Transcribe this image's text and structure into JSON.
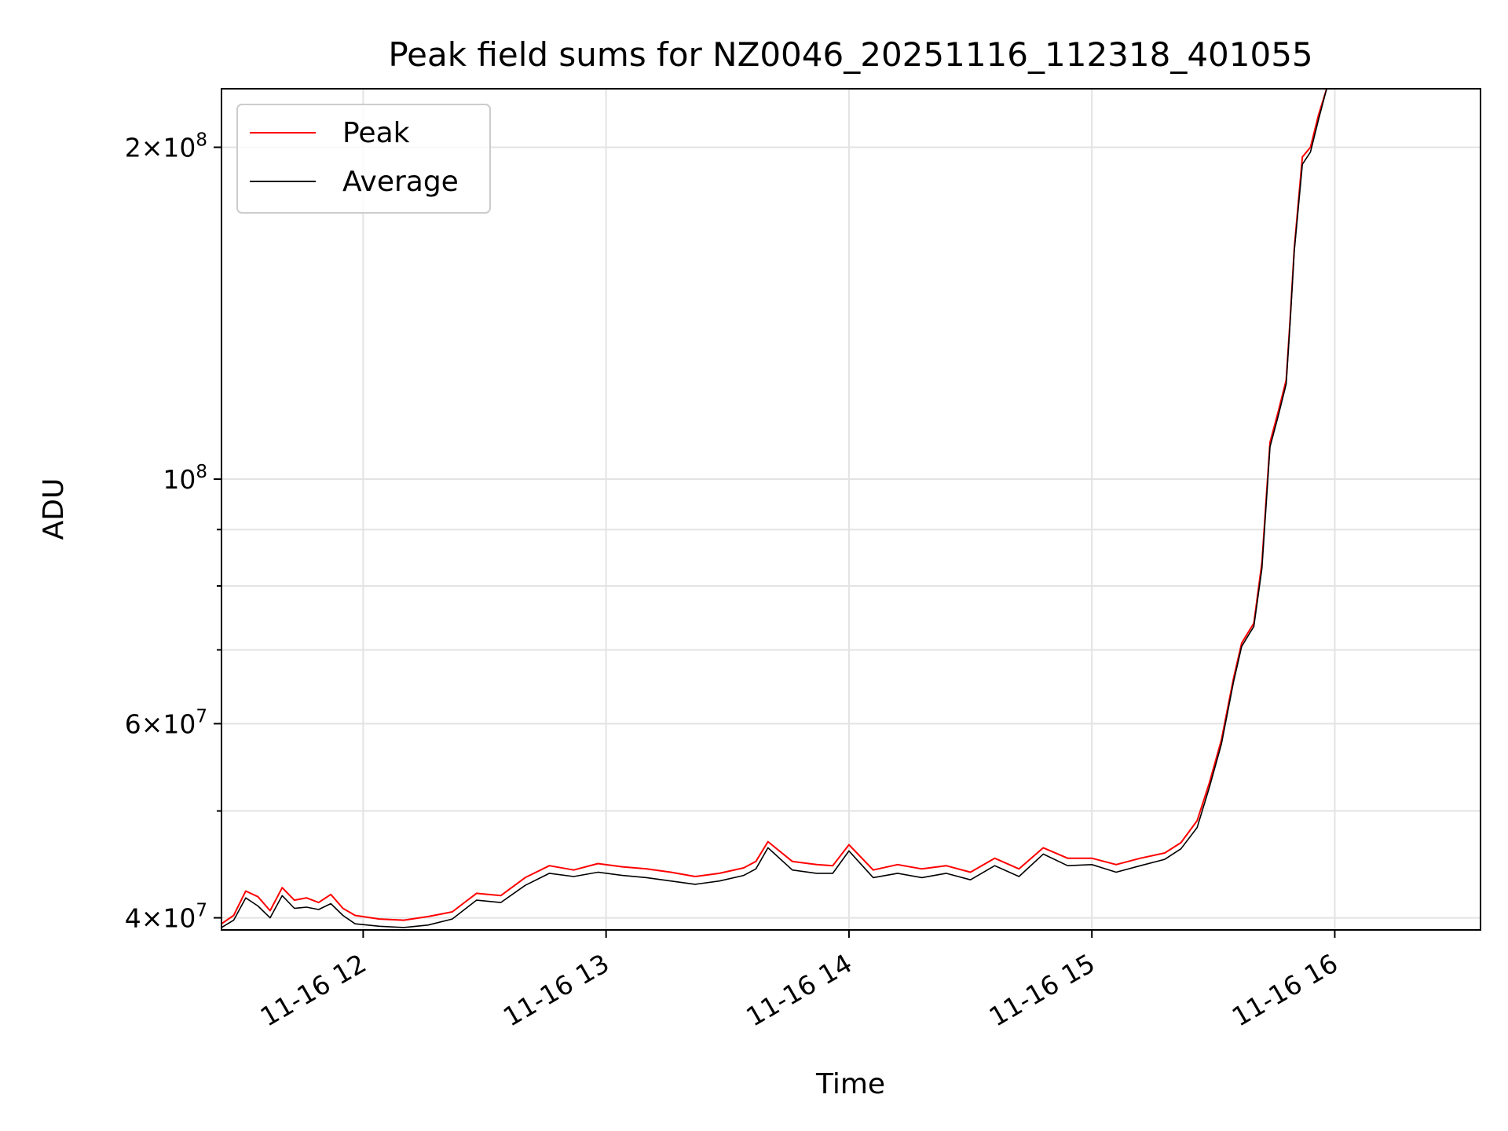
{
  "chart_data": {
    "type": "line",
    "title": "Peak field sums for NZ0046_20251116_112318_401055",
    "xlabel": "Time",
    "ylabel": "ADU",
    "yscale": "log",
    "grid": true,
    "legend_position": "top-left",
    "x_ticks": [
      "11-16 12",
      "11-16 13",
      "11-16 14",
      "11-16 15",
      "11-16 16"
    ],
    "y_ticks": [
      {
        "value": 40000000,
        "mantissa": "4",
        "exponent": "7"
      },
      {
        "value": 60000000,
        "mantissa": "6",
        "exponent": "7"
      },
      {
        "value": 100000000,
        "mantissa": "",
        "exponent": "8"
      },
      {
        "value": 200000000,
        "mantissa": "2",
        "exponent": "8"
      }
    ],
    "x_range": [
      "2025-11-16 11:25",
      "2025-11-16 16:36"
    ],
    "y_range": [
      39000000,
      226000000
    ],
    "series": [
      {
        "name": "Peak",
        "color": "#ff0000",
        "x": [
          "2025-11-16 11:25",
          "2025-11-16 11:28",
          "2025-11-16 11:31",
          "2025-11-16 11:34",
          "2025-11-16 11:37",
          "2025-11-16 11:40",
          "2025-11-16 11:43",
          "2025-11-16 11:46",
          "2025-11-16 11:49",
          "2025-11-16 11:52",
          "2025-11-16 11:55",
          "2025-11-16 11:58",
          "2025-11-16 12:04",
          "2025-11-16 12:10",
          "2025-11-16 12:16",
          "2025-11-16 12:22",
          "2025-11-16 12:28",
          "2025-11-16 12:34",
          "2025-11-16 12:40",
          "2025-11-16 12:46",
          "2025-11-16 12:52",
          "2025-11-16 12:58",
          "2025-11-16 13:04",
          "2025-11-16 13:10",
          "2025-11-16 13:16",
          "2025-11-16 13:22",
          "2025-11-16 13:28",
          "2025-11-16 13:34",
          "2025-11-16 13:37",
          "2025-11-16 13:40",
          "2025-11-16 13:46",
          "2025-11-16 13:52",
          "2025-11-16 13:56",
          "2025-11-16 14:00",
          "2025-11-16 14:06",
          "2025-11-16 14:12",
          "2025-11-16 14:18",
          "2025-11-16 14:24",
          "2025-11-16 14:30",
          "2025-11-16 14:36",
          "2025-11-16 14:42",
          "2025-11-16 14:48",
          "2025-11-16 14:54",
          "2025-11-16 15:00",
          "2025-11-16 15:06",
          "2025-11-16 15:12",
          "2025-11-16 15:18",
          "2025-11-16 15:22",
          "2025-11-16 15:26",
          "2025-11-16 15:29",
          "2025-11-16 15:32",
          "2025-11-16 15:35",
          "2025-11-16 15:37",
          "2025-11-16 15:39",
          "2025-11-16 15:40",
          "2025-11-16 15:42",
          "2025-11-16 15:44",
          "2025-11-16 15:46",
          "2025-11-16 15:48",
          "2025-11-16 15:49",
          "2025-11-16 15:50",
          "2025-11-16 15:52",
          "2025-11-16 15:54",
          "2025-11-16 15:56",
          "2025-11-16 15:58"
        ],
        "y": [
          39500000,
          40200000,
          42300000,
          41800000,
          40600000,
          42600000,
          41500000,
          41700000,
          41300000,
          42000000,
          40800000,
          40200000,
          39900000,
          39800000,
          40100000,
          40500000,
          42100000,
          41900000,
          43500000,
          44600000,
          44200000,
          44800000,
          44500000,
          44300000,
          44000000,
          43600000,
          43900000,
          44400000,
          45000000,
          46900000,
          45000000,
          44700000,
          44600000,
          46600000,
          44200000,
          44700000,
          44300000,
          44600000,
          44000000,
          45300000,
          44300000,
          46300000,
          45300000,
          45300000,
          44700000,
          45300000,
          45800000,
          46800000,
          49000000,
          53000000,
          58000000,
          66000000,
          71000000,
          73000000,
          74000000,
          84000000,
          108000000,
          115000000,
          123000000,
          140000000,
          162000000,
          196000000,
          200000000,
          214000000,
          226000000
        ]
      },
      {
        "name": "Average",
        "color": "#000000",
        "x": [
          "2025-11-16 11:25",
          "2025-11-16 11:28",
          "2025-11-16 11:31",
          "2025-11-16 11:34",
          "2025-11-16 11:37",
          "2025-11-16 11:40",
          "2025-11-16 11:43",
          "2025-11-16 11:46",
          "2025-11-16 11:49",
          "2025-11-16 11:52",
          "2025-11-16 11:55",
          "2025-11-16 11:58",
          "2025-11-16 12:04",
          "2025-11-16 12:10",
          "2025-11-16 12:16",
          "2025-11-16 12:22",
          "2025-11-16 12:28",
          "2025-11-16 12:34",
          "2025-11-16 12:40",
          "2025-11-16 12:46",
          "2025-11-16 12:52",
          "2025-11-16 12:58",
          "2025-11-16 13:04",
          "2025-11-16 13:10",
          "2025-11-16 13:16",
          "2025-11-16 13:22",
          "2025-11-16 13:28",
          "2025-11-16 13:34",
          "2025-11-16 13:37",
          "2025-11-16 13:40",
          "2025-11-16 13:46",
          "2025-11-16 13:52",
          "2025-11-16 13:56",
          "2025-11-16 14:00",
          "2025-11-16 14:06",
          "2025-11-16 14:12",
          "2025-11-16 14:18",
          "2025-11-16 14:24",
          "2025-11-16 14:30",
          "2025-11-16 14:36",
          "2025-11-16 14:42",
          "2025-11-16 14:48",
          "2025-11-16 14:54",
          "2025-11-16 15:00",
          "2025-11-16 15:06",
          "2025-11-16 15:12",
          "2025-11-16 15:18",
          "2025-11-16 15:22",
          "2025-11-16 15:26",
          "2025-11-16 15:29",
          "2025-11-16 15:32",
          "2025-11-16 15:35",
          "2025-11-16 15:37",
          "2025-11-16 15:39",
          "2025-11-16 15:40",
          "2025-11-16 15:42",
          "2025-11-16 15:44",
          "2025-11-16 15:46",
          "2025-11-16 15:48",
          "2025-11-16 15:49",
          "2025-11-16 15:50",
          "2025-11-16 15:52",
          "2025-11-16 15:54",
          "2025-11-16 15:56",
          "2025-11-16 15:58"
        ],
        "y": [
          39200000,
          39800000,
          41700000,
          41000000,
          40000000,
          41900000,
          40800000,
          40900000,
          40700000,
          41200000,
          40200000,
          39500000,
          39300000,
          39200000,
          39400000,
          39900000,
          41500000,
          41300000,
          42800000,
          43900000,
          43600000,
          44000000,
          43700000,
          43500000,
          43200000,
          42900000,
          43200000,
          43700000,
          44300000,
          46300000,
          44200000,
          43900000,
          43900000,
          46000000,
          43500000,
          43900000,
          43500000,
          43900000,
          43300000,
          44600000,
          43600000,
          45700000,
          44600000,
          44700000,
          44000000,
          44600000,
          45200000,
          46200000,
          48300000,
          52500000,
          57500000,
          65500000,
          70500000,
          72500000,
          73500000,
          83000000,
          107000000,
          114000000,
          122000000,
          139000000,
          161000000,
          193000000,
          198000000,
          212000000,
          226000000
        ]
      }
    ]
  }
}
